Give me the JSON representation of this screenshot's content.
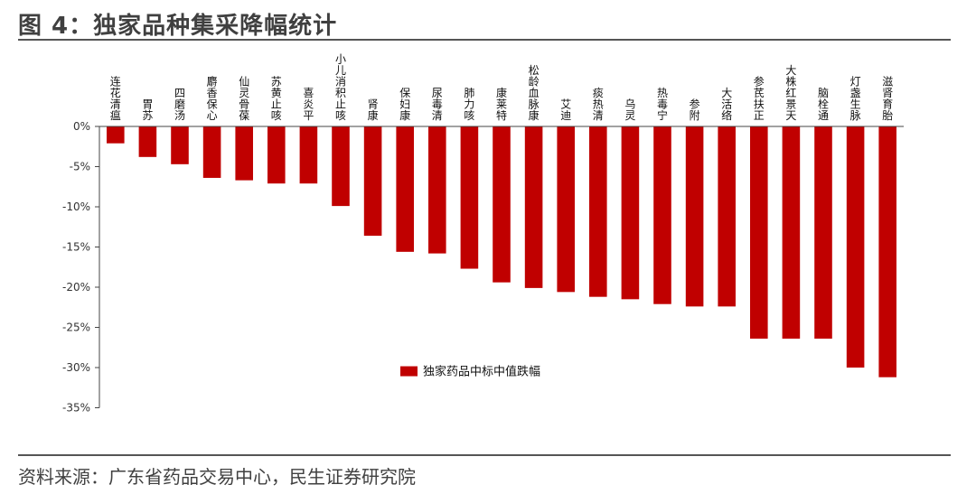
{
  "header": {
    "figure_title": "图 4：独家品种集采降幅统计"
  },
  "footer": {
    "source": "资料来源：广东省药品交易中心，民生证券研究院"
  },
  "colors": {
    "bar": "#c00000",
    "axis": "#444444",
    "rule": "#555555"
  },
  "chart_data": {
    "type": "bar",
    "title": "",
    "xlabel": "",
    "ylabel": "",
    "categories": [
      "连花清瘟",
      "胃苏",
      "四磨汤",
      "麝香保心",
      "仙灵骨葆",
      "苏黄止咳",
      "喜炎平",
      "小儿消积止咳",
      "肾康",
      "保妇康",
      "尿毒清",
      "肺力咳",
      "康莱特",
      "松龄血脉康",
      "艾迪",
      "痰热清",
      "乌灵",
      "热毒宁",
      "参附",
      "大活络",
      "参芪扶正",
      "大株红景天",
      "脑栓通",
      "灯盏生脉",
      "滋肾育胎"
    ],
    "series": [
      {
        "name": "独家药品中标中值跌幅",
        "values": [
          -2.1,
          -3.8,
          -4.7,
          -6.4,
          -6.7,
          -7.1,
          -7.1,
          -9.9,
          -13.6,
          -15.6,
          -15.8,
          -17.7,
          -19.4,
          -20.1,
          -20.6,
          -21.2,
          -21.5,
          -22.1,
          -22.4,
          -22.4,
          -26.4,
          -26.4,
          -26.4,
          -30.0,
          -31.2
        ]
      }
    ],
    "ylim": [
      -35,
      0
    ],
    "yticks": [
      0,
      -5,
      -10,
      -15,
      -20,
      -25,
      -30,
      -35
    ],
    "ytick_labels": [
      "0%",
      "-5%",
      "-10%",
      "-15%",
      "-20%",
      "-25%",
      "-30%",
      "-35%"
    ],
    "legend_position": "center-bottom",
    "grid": false
  }
}
